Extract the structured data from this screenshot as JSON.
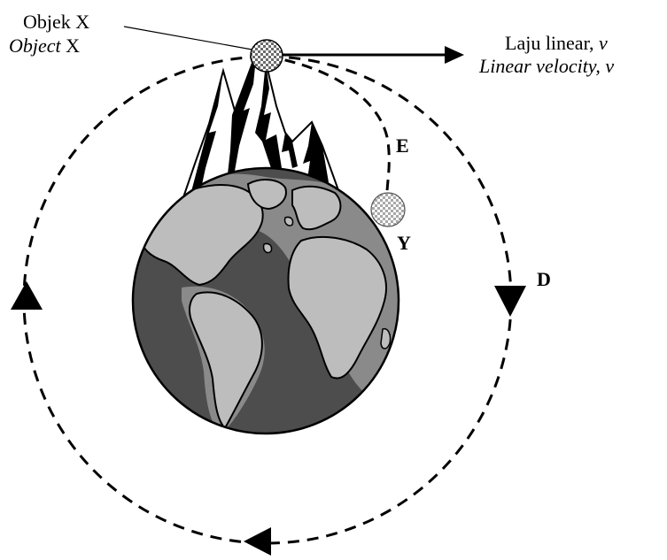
{
  "labels": {
    "object_ms": "Objek X",
    "object_en_italic": "Object",
    "object_en_rest": " X",
    "velocity_ms_text": "Laju linear, ",
    "velocity_ms_var": "v",
    "velocity_en": "Linear velocity, v",
    "path_e": "E",
    "point_y": "Y",
    "path_d": "D"
  },
  "colors": {
    "stroke": "#000000",
    "ocean": "#4d4d4d",
    "land": "#bdbdbd",
    "shelf": "#8a8a8a",
    "checker": "#6b6b6b",
    "background": "#ffffff"
  },
  "icons": {
    "object_x": "checkered-ball-icon",
    "object_y": "checkered-ball-icon",
    "earth": "globe-icon",
    "mountain": "mountain-peaks-icon"
  }
}
